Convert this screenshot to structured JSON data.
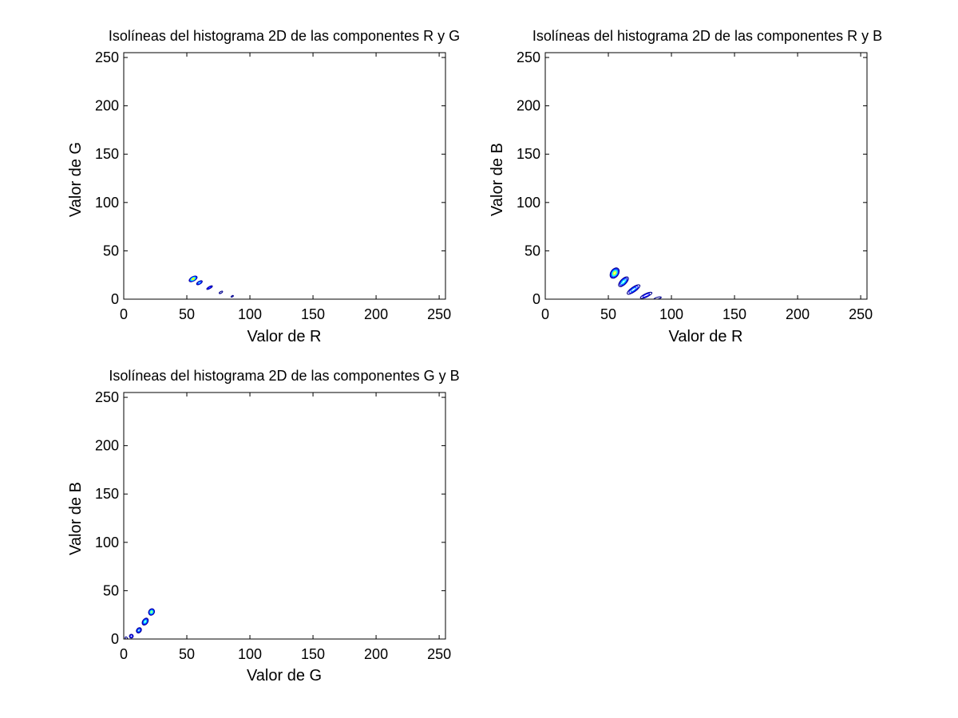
{
  "colors": {
    "background": "#ffffff",
    "axes": "#000000",
    "colormap": [
      "#00008f",
      "#0000ff",
      "#0080ff",
      "#00ffff",
      "#80ff80",
      "#ffff00",
      "#ff8000"
    ]
  },
  "chart_data": [
    {
      "type": "contour",
      "title": "Isolíneas del histograma 2D de las componentes R y G",
      "xlabel": "Valor de R",
      "ylabel": "Valor de G",
      "xlim": [
        0,
        255
      ],
      "ylim": [
        0,
        255
      ],
      "xticks": [
        0,
        50,
        100,
        150,
        200,
        250
      ],
      "yticks": [
        0,
        50,
        100,
        150,
        200,
        250
      ],
      "grid": false,
      "clusters": [
        {
          "cx": 55,
          "cy": 21,
          "sx": 3.5,
          "sy": 2.2,
          "angle": -30,
          "peak": 6
        },
        {
          "cx": 60,
          "cy": 17,
          "sx": 2.5,
          "sy": 1.5,
          "angle": -30,
          "peak": 3
        },
        {
          "cx": 68,
          "cy": 12,
          "sx": 2.5,
          "sy": 1.0,
          "angle": -30,
          "peak": 2
        },
        {
          "cx": 77,
          "cy": 7,
          "sx": 1.5,
          "sy": 0.8,
          "angle": -30,
          "peak": 1
        },
        {
          "cx": 86,
          "cy": 3,
          "sx": 1.0,
          "sy": 0.6,
          "angle": -30,
          "peak": 1
        }
      ]
    },
    {
      "type": "contour",
      "title": "Isolíneas del histograma 2D de las componentes R y B",
      "xlabel": "Valor de R",
      "ylabel": "Valor de B",
      "xlim": [
        0,
        255
      ],
      "ylim": [
        0,
        255
      ],
      "xticks": [
        0,
        50,
        100,
        150,
        200,
        250
      ],
      "yticks": [
        0,
        50,
        100,
        150,
        200,
        250
      ],
      "grid": false,
      "clusters": [
        {
          "cx": 55,
          "cy": 27,
          "sx": 4.5,
          "sy": 4.0,
          "angle": -55,
          "peak": 6
        },
        {
          "cx": 62,
          "cy": 18,
          "sx": 5.0,
          "sy": 3.0,
          "angle": -45,
          "peak": 4
        },
        {
          "cx": 70,
          "cy": 10,
          "sx": 6.0,
          "sy": 2.5,
          "angle": -35,
          "peak": 3
        },
        {
          "cx": 80,
          "cy": 4,
          "sx": 5.0,
          "sy": 1.8,
          "angle": -25,
          "peak": 2
        },
        {
          "cx": 89,
          "cy": 1,
          "sx": 3.0,
          "sy": 1.0,
          "angle": -15,
          "peak": 1
        }
      ]
    },
    {
      "type": "contour",
      "title": "Isolíneas del histograma 2D de las componentes G y B",
      "xlabel": "Valor de G",
      "ylabel": "Valor de B",
      "xlim": [
        0,
        255
      ],
      "ylim": [
        0,
        255
      ],
      "xticks": [
        0,
        50,
        100,
        150,
        200,
        250
      ],
      "yticks": [
        0,
        50,
        100,
        150,
        200,
        250
      ],
      "grid": false,
      "clusters": [
        {
          "cx": 22,
          "cy": 28,
          "sx": 2.2,
          "sy": 3.5,
          "angle": 30,
          "peak": 5
        },
        {
          "cx": 17,
          "cy": 18,
          "sx": 2.0,
          "sy": 4.0,
          "angle": 35,
          "peak": 4
        },
        {
          "cx": 12,
          "cy": 9,
          "sx": 1.8,
          "sy": 3.0,
          "angle": 40,
          "peak": 3
        },
        {
          "cx": 6,
          "cy": 3,
          "sx": 1.5,
          "sy": 2.0,
          "angle": 45,
          "peak": 2
        },
        {
          "cx": 2,
          "cy": 1,
          "sx": 1.0,
          "sy": 1.0,
          "angle": 45,
          "peak": 1
        }
      ]
    }
  ]
}
